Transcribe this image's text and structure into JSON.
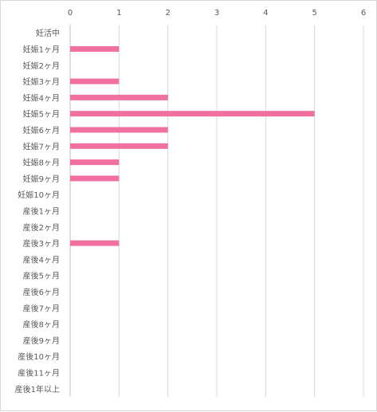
{
  "chart_data": {
    "type": "bar",
    "orientation": "horizontal",
    "categories": [
      "妊活中",
      "妊娠1ヶ月",
      "妊娠2ヶ月",
      "妊娠3ヶ月",
      "妊娠4ヶ月",
      "妊娠5ヶ月",
      "妊娠6ヶ月",
      "妊娠7ヶ月",
      "妊娠8ヶ月",
      "妊娠9ヶ月",
      "妊娠10ヶ月",
      "産後1ヶ月",
      "産後2ヶ月",
      "産後3ヶ月",
      "産後4ヶ月",
      "産後5ヶ月",
      "産後6ヶ月",
      "産後7ヶ月",
      "産後8ヶ月",
      "産後9ヶ月",
      "産後10ヶ月",
      "産後11ヶ月",
      "産後1年以上"
    ],
    "values": [
      0,
      1,
      0,
      1,
      2,
      5,
      2,
      2,
      1,
      1,
      0,
      0,
      0,
      1,
      0,
      0,
      0,
      0,
      0,
      0,
      0,
      0,
      0
    ],
    "xlim": [
      0,
      6
    ],
    "x_ticks": [
      "0",
      "1",
      "2",
      "3",
      "4",
      "5",
      "6"
    ],
    "x_axis_position": "top",
    "grid": true,
    "bar_color": "#f0709f",
    "grid_color": "#d9d9d9",
    "title": "",
    "xlabel": "",
    "ylabel": ""
  }
}
